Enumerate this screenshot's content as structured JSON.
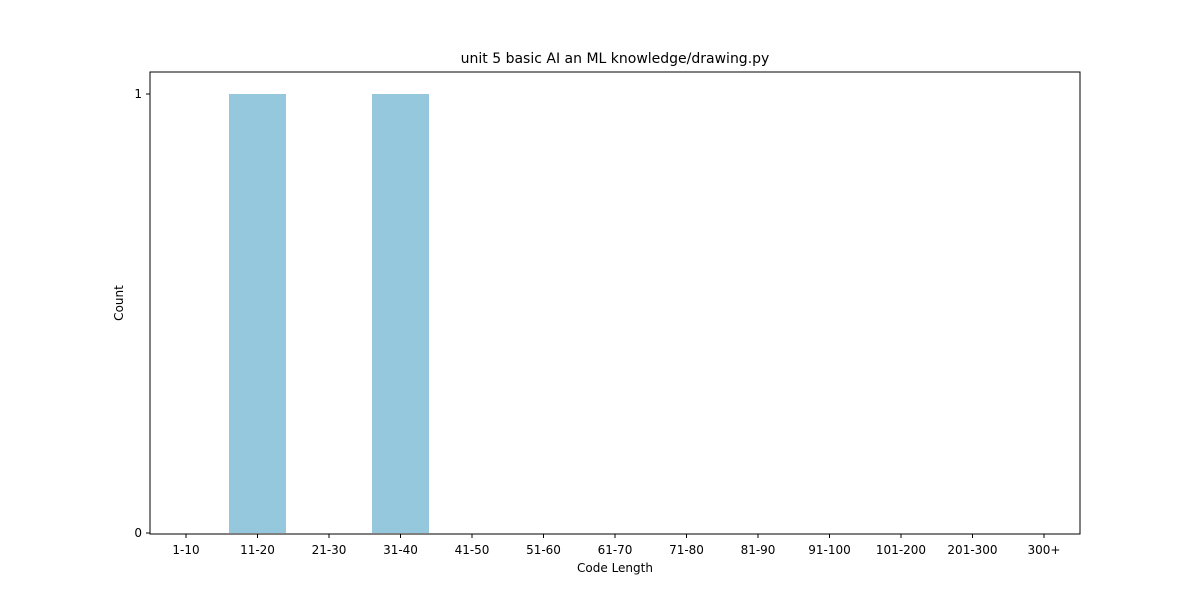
{
  "chart_data": {
    "type": "bar",
    "title": "unit 5 basic AI an ML knowledge/drawing.py",
    "xlabel": "Code Length",
    "ylabel": "Count",
    "categories": [
      "1-10",
      "11-20",
      "21-30",
      "31-40",
      "41-50",
      "51-60",
      "61-70",
      "71-80",
      "81-90",
      "91-100",
      "101-200",
      "201-300",
      "300+"
    ],
    "values": [
      0,
      1,
      0,
      1,
      0,
      0,
      0,
      0,
      0,
      0,
      0,
      0,
      0
    ],
    "ylim": [
      0,
      1
    ],
    "yticks": [
      0,
      1
    ],
    "grid": false,
    "legend": "none",
    "bar_color": "#96c8dd"
  }
}
